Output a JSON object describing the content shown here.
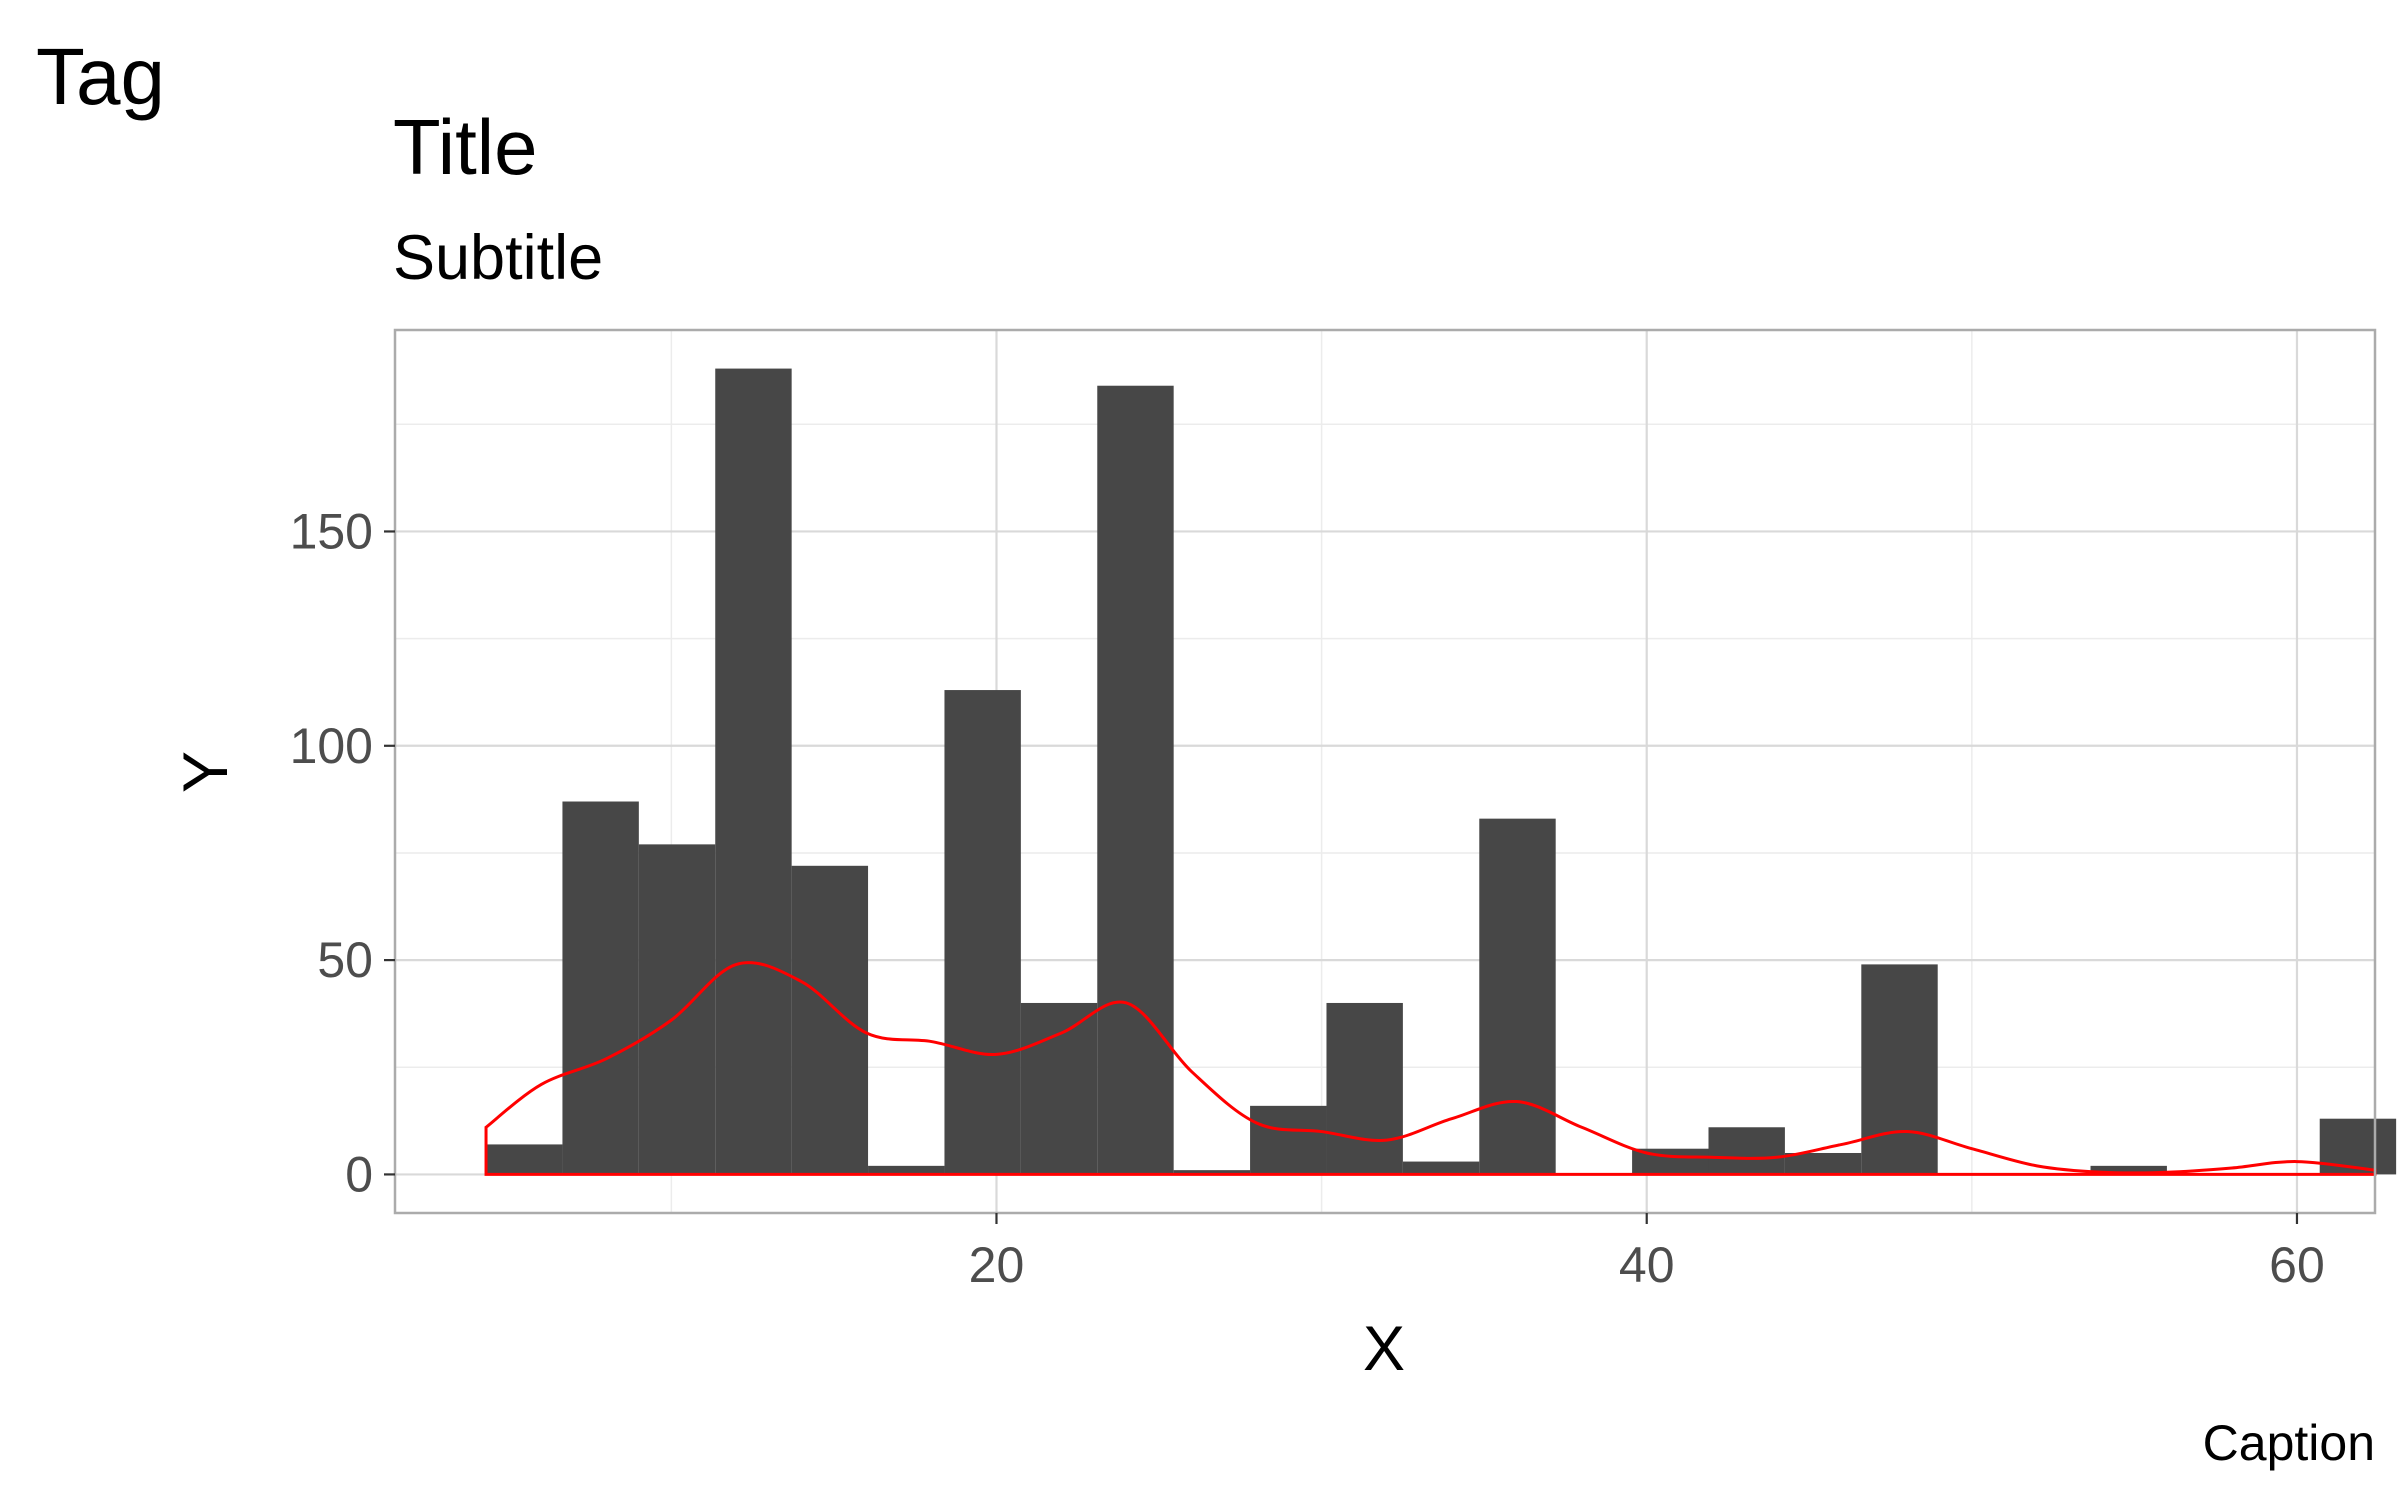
{
  "chart_data": {
    "type": "bar",
    "tag": "Tag",
    "title": "Title",
    "subtitle": "Subtitle",
    "xlabel": "X",
    "ylabel": "Y",
    "caption": "Caption",
    "xlim": [
      1.5,
      62.4
    ],
    "ylim": [
      -9,
      197
    ],
    "x_ticks": [
      20,
      40,
      60
    ],
    "y_ticks": [
      0,
      50,
      100,
      150
    ],
    "grid": true,
    "bin_width": 2.35,
    "bins": [
      {
        "x0": 4.3,
        "count": 7
      },
      {
        "x0": 6.65,
        "count": 87
      },
      {
        "x0": 9.0,
        "count": 77
      },
      {
        "x0": 11.35,
        "count": 188
      },
      {
        "x0": 13.7,
        "count": 72
      },
      {
        "x0": 16.05,
        "count": 2
      },
      {
        "x0": 18.4,
        "count": 113
      },
      {
        "x0": 20.75,
        "count": 40
      },
      {
        "x0": 23.1,
        "count": 184
      },
      {
        "x0": 25.45,
        "count": 1
      },
      {
        "x0": 27.8,
        "count": 16
      },
      {
        "x0": 30.15,
        "count": 40
      },
      {
        "x0": 32.5,
        "count": 3
      },
      {
        "x0": 34.85,
        "count": 83
      },
      {
        "x0": 37.2,
        "count": 0
      },
      {
        "x0": 39.55,
        "count": 6
      },
      {
        "x0": 41.9,
        "count": 11
      },
      {
        "x0": 44.25,
        "count": 5
      },
      {
        "x0": 46.6,
        "count": 49
      },
      {
        "x0": 48.95,
        "count": 0
      },
      {
        "x0": 51.3,
        "count": 0
      },
      {
        "x0": 53.65,
        "count": 2
      },
      {
        "x0": 56.0,
        "count": 0
      },
      {
        "x0": 58.35,
        "count": 0
      },
      {
        "x0": 60.7,
        "count": 13
      }
    ],
    "density": {
      "color": "#ff0000",
      "x": [
        4.3,
        6,
        8,
        10,
        12,
        14,
        16,
        18,
        20,
        22,
        24,
        26,
        28,
        30,
        32,
        34,
        36,
        38,
        40,
        42,
        44,
        46,
        48,
        50,
        52,
        54,
        56,
        58,
        60,
        62.4
      ],
      "y": [
        11,
        21,
        27,
        36,
        49,
        45,
        33,
        31,
        28,
        33,
        40,
        24,
        12,
        10,
        8,
        13,
        17,
        11,
        5,
        4,
        4,
        7,
        10,
        6,
        2,
        0.5,
        0.5,
        1.5,
        3,
        1
      ]
    },
    "bar_color": "#474747"
  }
}
